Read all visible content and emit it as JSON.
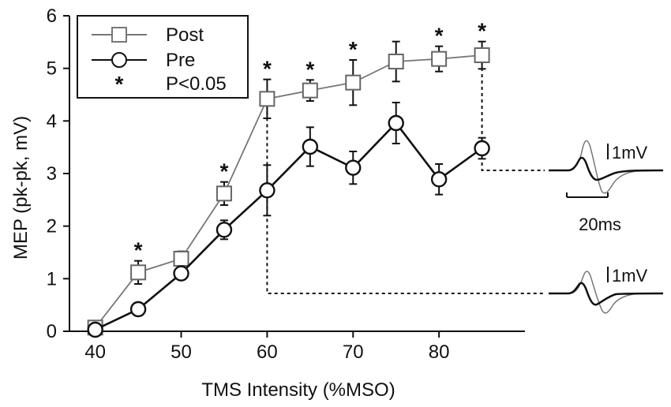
{
  "chart_data": {
    "type": "line",
    "title": "",
    "xlabel": "TMS Intensity (%MSO)",
    "ylabel": "MEP (pk-pk, mV)",
    "xlim": [
      37,
      90
    ],
    "ylim": [
      0,
      6
    ],
    "xticks": [
      40,
      50,
      60,
      70,
      80
    ],
    "yticks": [
      0,
      1,
      2,
      3,
      4,
      5,
      6
    ],
    "grid": false,
    "legend_position": "top-left",
    "series": [
      {
        "name": "Post",
        "marker": "square",
        "color": "#777777",
        "x": [
          40,
          45,
          50,
          55,
          60,
          65,
          70,
          75,
          80,
          85
        ],
        "y": [
          0.07,
          1.12,
          1.38,
          2.62,
          4.42,
          4.58,
          4.73,
          5.13,
          5.18,
          5.25
        ],
        "err": [
          0.05,
          0.22,
          0.14,
          0.22,
          0.37,
          0.2,
          0.43,
          0.38,
          0.24,
          0.26
        ]
      },
      {
        "name": "Pre",
        "marker": "circle",
        "color": "#111111",
        "x": [
          40,
          45,
          50,
          55,
          60,
          65,
          70,
          75,
          80,
          85
        ],
        "y": [
          0.03,
          0.42,
          1.1,
          1.93,
          2.68,
          3.51,
          3.11,
          3.96,
          2.89,
          3.48
        ],
        "err": [
          0.03,
          0.05,
          0.05,
          0.18,
          0.48,
          0.37,
          0.31,
          0.39,
          0.29,
          0.2
        ]
      }
    ],
    "significance": {
      "label": "P<0.05",
      "symbol": "*",
      "x": [
        45,
        55,
        60,
        65,
        70,
        80,
        85
      ]
    },
    "insets": [
      {
        "name": "trace-85",
        "linked_x": 85,
        "linked_series": "Post",
        "scale_label": "1mV",
        "time_scale_label": "20ms"
      },
      {
        "name": "trace-60",
        "linked_x": 60,
        "linked_series": "Post",
        "scale_label": "1mV"
      }
    ]
  }
}
